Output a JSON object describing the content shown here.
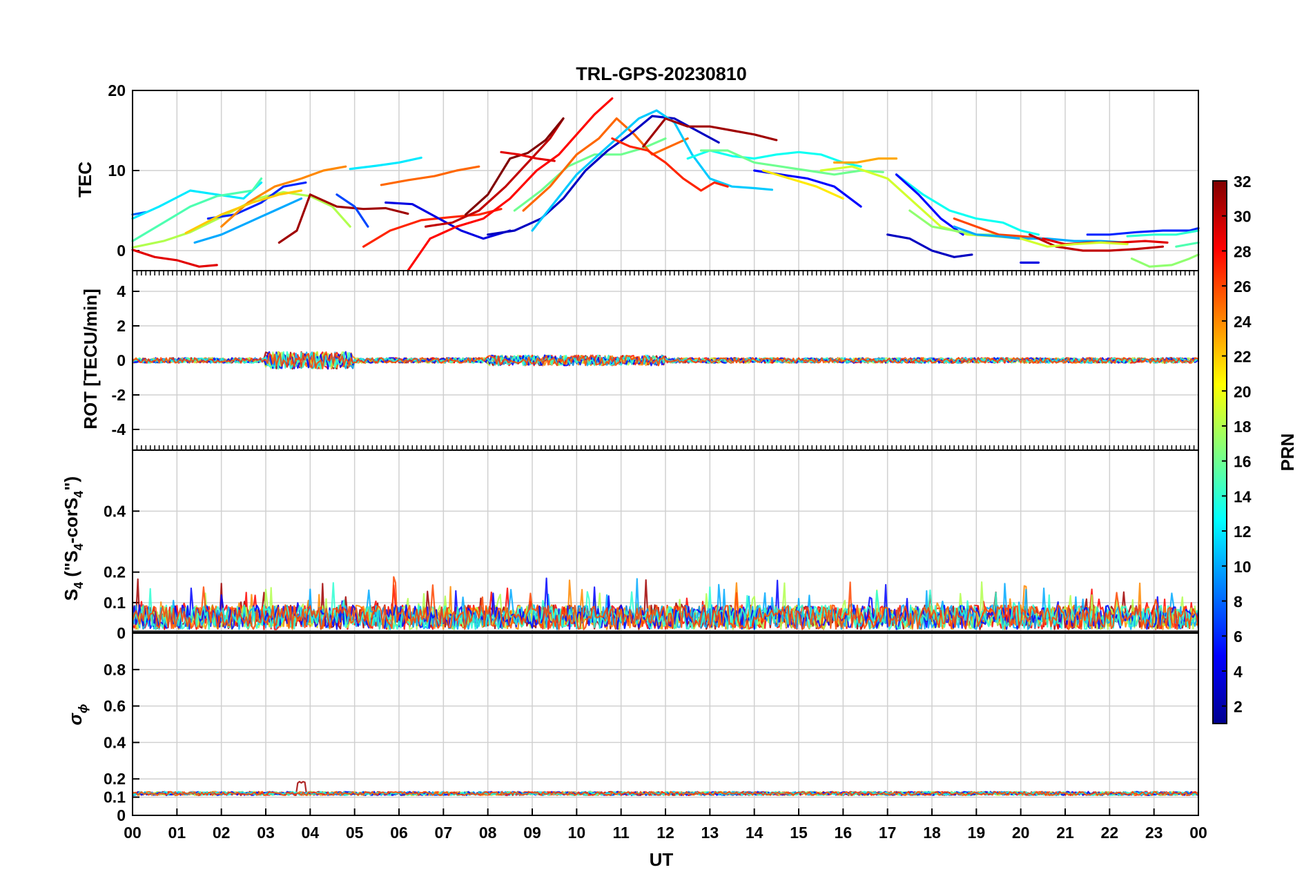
{
  "chart_data": {
    "type": "line",
    "title": "TRL-GPS-20230810",
    "xlabel": "UT",
    "x_ticks": [
      "00",
      "01",
      "02",
      "03",
      "04",
      "05",
      "06",
      "07",
      "08",
      "09",
      "10",
      "11",
      "12",
      "13",
      "14",
      "15",
      "16",
      "17",
      "18",
      "19",
      "20",
      "21",
      "22",
      "23",
      "00"
    ],
    "xlim": [
      0,
      24
    ],
    "colorbar": {
      "label": "PRN",
      "range": [
        1,
        32
      ],
      "ticks": [
        "32",
        "30",
        "28",
        "26",
        "24",
        "22",
        "20",
        "18",
        "16",
        "14",
        "12",
        "10",
        "8",
        "6",
        "4",
        "2"
      ],
      "colormap": "jet"
    },
    "panels": [
      {
        "id": "tec",
        "ylabel": "TEC",
        "ylim": [
          -2.5,
          20
        ],
        "yticks": [
          "20",
          "10",
          "0"
        ],
        "ytick_values": [
          20,
          10,
          0
        ],
        "series": [
          {
            "prn": 8,
            "x": [
              0,
              0.3
            ],
            "y": [
              4.5,
              4.8
            ]
          },
          {
            "prn": 12,
            "x": [
              0,
              0.6,
              1.3,
              1.9,
              2.5,
              2.9
            ],
            "y": [
              4,
              5.5,
              7.5,
              7,
              6.5,
              8.5
            ]
          },
          {
            "prn": 15,
            "x": [
              0,
              0.7,
              1.3,
              1.9,
              2.7,
              2.9
            ],
            "y": [
              1.2,
              3.5,
              5.5,
              6.8,
              7.5,
              9
            ]
          },
          {
            "prn": 18,
            "x": [
              0,
              0.7,
              1.3,
              2.0,
              2.8,
              3.4,
              4.0,
              4.5,
              4.9
            ],
            "y": [
              0.4,
              1.2,
              2.3,
              4.2,
              6.5,
              7.3,
              6.8,
              5.5,
              3
            ]
          },
          {
            "prn": 29,
            "x": [
              0,
              0.5,
              1.0,
              1.5,
              1.9
            ],
            "y": [
              0.1,
              -0.8,
              -1.2,
              -2,
              -1.8
            ]
          },
          {
            "prn": 10,
            "x": [
              1.4,
              2.0,
              2.6,
              3.2,
              3.8
            ],
            "y": [
              1,
              2,
              3.5,
              5,
              6.5
            ]
          },
          {
            "prn": 6,
            "x": [
              1.7,
              2.3,
              2.9,
              3.4,
              3.9
            ],
            "y": [
              4,
              4.5,
              6,
              8,
              8.5
            ]
          },
          {
            "prn": 24,
            "x": [
              2.0,
              2.6,
              3.2,
              3.8,
              4.3,
              4.8
            ],
            "y": [
              3,
              6,
              8,
              9,
              10,
              10.5
            ]
          },
          {
            "prn": 22,
            "x": [
              1.2,
              2.0,
              2.7,
              3.3,
              3.8
            ],
            "y": [
              2.2,
              4.5,
              6,
              7,
              7.5
            ]
          },
          {
            "prn": 31,
            "x": [
              3.3,
              3.7,
              4.0,
              4.6,
              5.2,
              5.7,
              6.2
            ],
            "y": [
              1,
              2.5,
              7,
              5.5,
              5.2,
              5.3,
              4.6
            ]
          },
          {
            "prn": 7,
            "x": [
              4.6,
              5.0,
              5.3
            ],
            "y": [
              7,
              5.5,
              3
            ]
          },
          {
            "prn": 12,
            "x": [
              4.9,
              5.5,
              6.0,
              6.5
            ],
            "y": [
              10.2,
              10.6,
              11,
              11.6
            ]
          },
          {
            "prn": 25,
            "x": [
              5.6,
              6.2,
              6.8,
              7.3,
              7.8
            ],
            "y": [
              8.2,
              8.8,
              9.3,
              10,
              10.5
            ]
          },
          {
            "prn": 27,
            "x": [
              5.2,
              5.8,
              6.5,
              7.2,
              7.8,
              8.3
            ],
            "y": [
              0.5,
              2.5,
              3.8,
              4.2,
              4.5,
              5.2
            ]
          },
          {
            "prn": 4,
            "x": [
              5.7,
              6.3,
              6.9,
              7.4,
              7.9,
              8.5
            ],
            "y": [
              6,
              5.8,
              4,
              2.5,
              1.5,
              2.5
            ]
          },
          {
            "prn": 28,
            "x": [
              6.2,
              6.7,
              7.3,
              7.9,
              8.5,
              9.1,
              9.6,
              10.0,
              10.4,
              10.8
            ],
            "y": [
              -2.5,
              1.5,
              3,
              4,
              6.5,
              10,
              12,
              14.5,
              17,
              19
            ]
          },
          {
            "prn": 30,
            "x": [
              6.6,
              7.2,
              7.8,
              8.4,
              8.9,
              9.4,
              9.7
            ],
            "y": [
              3,
              3.5,
              5,
              8,
              11,
              14,
              16.5
            ]
          },
          {
            "prn": 32,
            "x": [
              7.5,
              8.0,
              8.5,
              8.9,
              9.3,
              9.7
            ],
            "y": [
              4.5,
              7,
              11.5,
              12.2,
              13.8,
              16.5
            ]
          },
          {
            "prn": 29,
            "x": [
              8.3,
              8.7,
              9.1,
              9.5
            ],
            "y": [
              12.3,
              12,
              11.5,
              11.2
            ]
          },
          {
            "prn": 16,
            "x": [
              8.6,
              9.2,
              9.8,
              10.4,
              11.0,
              11.5,
              12.0
            ],
            "y": [
              5,
              7.5,
              10.5,
              12,
              12,
              12.8,
              14
            ]
          },
          {
            "prn": 25,
            "x": [
              8.8,
              9.4,
              10.0,
              10.5,
              10.9,
              11.3,
              11.7,
              12.1,
              12.5
            ],
            "y": [
              5,
              8,
              12,
              14,
              16.5,
              14.5,
              12,
              13,
              14
            ]
          },
          {
            "prn": 3,
            "x": [
              8.0,
              8.6,
              9.2,
              9.7,
              10.2,
              10.7,
              11.2,
              11.7,
              12.2,
              12.7,
              13.2
            ],
            "y": [
              2,
              2.5,
              4,
              6.5,
              10,
              12.5,
              14.5,
              16.8,
              16.5,
              15,
              13.5
            ]
          },
          {
            "prn": 11,
            "x": [
              9.0,
              9.5,
              10.0,
              10.5,
              11.0,
              11.4,
              11.8,
              12.2,
              12.6,
              13.0,
              13.5,
              14.0,
              14.4
            ],
            "y": [
              2.5,
              6,
              9.5,
              12,
              14.5,
              16.5,
              17.5,
              16,
              12,
              9,
              8,
              7.8,
              7.6
            ]
          },
          {
            "prn": 27,
            "x": [
              10.8,
              11.2,
              11.6,
              12.0,
              12.4,
              12.8,
              13.1,
              13.4
            ],
            "y": [
              14,
              13,
              12.5,
              11,
              9,
              7.5,
              8.5,
              8
            ]
          },
          {
            "prn": 31,
            "x": [
              11.5,
              12.0,
              12.5,
              13.0,
              13.5,
              14.0,
              14.5
            ],
            "y": [
              13,
              16.5,
              15.5,
              15.5,
              15,
              14.5,
              13.8
            ]
          },
          {
            "prn": 13,
            "x": [
              12.5,
              13.0,
              13.5,
              14.0,
              14.5,
              15.0,
              15.5,
              16.0,
              16.4
            ],
            "y": [
              11.5,
              12.5,
              11.8,
              11.5,
              12,
              12.3,
              12,
              11,
              10.5
            ]
          },
          {
            "prn": 16,
            "x": [
              12.8,
              13.4,
              14.0,
              14.6,
              15.2,
              15.8,
              16.4,
              16.9
            ],
            "y": [
              12.5,
              12.5,
              11,
              10.5,
              10,
              9.5,
              10,
              9.8
            ]
          },
          {
            "prn": 5,
            "x": [
              14.0,
              14.6,
              15.2,
              15.8,
              16.4
            ],
            "y": [
              10,
              9.5,
              9,
              8,
              5.5
            ]
          },
          {
            "prn": 21,
            "x": [
              14.2,
              14.8,
              15.4,
              16.0
            ],
            "y": [
              10,
              9,
              8,
              6.5
            ]
          },
          {
            "prn": 23,
            "x": [
              15.8,
              16.3,
              16.8,
              17.2
            ],
            "y": [
              11,
              11,
              11.5,
              11.5
            ]
          },
          {
            "prn": 19,
            "x": [
              15.5,
              16.2,
              17.0,
              17.6,
              18.2,
              18.8,
              19.4,
              20.0
            ],
            "y": [
              10,
              10.5,
              9,
              6,
              3,
              2,
              1.8,
              1.5
            ]
          },
          {
            "prn": 13,
            "x": [
              17.2,
              17.8,
              18.4,
              19.0,
              19.6,
              20.0,
              20.4
            ],
            "y": [
              9.5,
              7,
              5,
              4,
              3.5,
              2.5,
              2
            ]
          },
          {
            "prn": 5,
            "x": [
              17.2,
              17.7,
              18.2,
              18.7
            ],
            "y": [
              9.5,
              7,
              4,
              2
            ]
          },
          {
            "prn": 17,
            "x": [
              17.5,
              18.0,
              18.5,
              19.0,
              19.5
            ],
            "y": [
              5,
              3,
              2.5,
              2,
              2
            ]
          },
          {
            "prn": 3,
            "x": [
              17.0,
              17.5,
              18.0,
              18.5,
              18.9
            ],
            "y": [
              2,
              1.5,
              0,
              -0.8,
              -0.5
            ]
          },
          {
            "prn": 26,
            "x": [
              18.5,
              19.0,
              19.5,
              20.0,
              20.5
            ],
            "y": [
              4,
              3,
              2,
              1.8,
              1.5
            ]
          },
          {
            "prn": 10,
            "x": [
              18.5,
              19.0,
              19.5,
              20.0,
              20.6,
              21.2,
              21.8,
              22.4
            ],
            "y": [
              3,
              2,
              1.8,
              1.5,
              1.5,
              1.2,
              1.2,
              1
            ]
          },
          {
            "prn": 30,
            "x": [
              20.2,
              20.8,
              21.4,
              22.0,
              22.6,
              23.2
            ],
            "y": [
              2,
              0.5,
              0,
              0,
              0.2,
              0.5
            ]
          },
          {
            "prn": 29,
            "x": [
              20.5,
              21.0,
              21.6,
              22.2,
              22.8,
              23.3
            ],
            "y": [
              1.5,
              0.8,
              1,
              1,
              1.2,
              1
            ]
          },
          {
            "prn": 19,
            "x": [
              20.0,
              20.6,
              21.2,
              21.8,
              22.4
            ],
            "y": [
              1.5,
              0.5,
              0.8,
              1,
              0.8
            ]
          },
          {
            "prn": 6,
            "x": [
              21.5,
              22.0,
              22.6,
              23.2,
              23.8,
              24.0
            ],
            "y": [
              2,
              2,
              2.3,
              2.5,
              2.5,
              2.8
            ]
          },
          {
            "prn": 14,
            "x": [
              22.4,
              23.0,
              23.5,
              24.0
            ],
            "y": [
              1.8,
              2,
              2,
              2.5
            ]
          },
          {
            "prn": 17,
            "x": [
              22.5,
              22.9,
              23.4,
              23.8,
              24.0
            ],
            "y": [
              -1,
              -2,
              -1.8,
              -1,
              -0.5
            ]
          },
          {
            "prn": 15,
            "x": [
              23.5,
              24.0
            ],
            "y": [
              0.5,
              1
            ]
          },
          {
            "prn": 4,
            "x": [
              20.0,
              20.4
            ],
            "y": [
              -1.5,
              -1.5
            ]
          }
        ]
      },
      {
        "id": "rot",
        "ylabel": "ROT [TECU/min]",
        "ylim": [
          -5.2,
          5.2
        ],
        "yticks": [
          "4",
          "2",
          "0",
          "-2",
          "-4"
        ],
        "ytick_values": [
          4,
          2,
          0,
          -2,
          -4
        ],
        "baseline": 0,
        "typical_spread": 0.15,
        "max_excursion": [
          -1.0,
          1.0
        ]
      },
      {
        "id": "s4",
        "ylabel_main": "S",
        "ylabel_sub1": "4",
        "ylabel_mid": " (\"S",
        "ylabel_sub2": "4",
        "ylabel_mid2": "-corS",
        "ylabel_sub3": "4",
        "ylabel_end": "\")",
        "ylim": [
          0,
          0.6
        ],
        "yticks": [
          "0.4",
          "0.2",
          "0.1",
          "0"
        ],
        "ytick_values": [
          0.4,
          0.2,
          0.1,
          0
        ],
        "baseline": 0.04,
        "max_value": 0.21
      },
      {
        "id": "sigma_phi",
        "ylabel_main": "σ",
        "ylabel_sub": "ϕ",
        "ylim": [
          0,
          1
        ],
        "yticks": [
          "0.8",
          "0.6",
          "0.4",
          "0.2",
          "0.1",
          "0"
        ],
        "ytick_values": [
          0.8,
          0.6,
          0.4,
          0.2,
          0.1,
          0
        ],
        "baseline": 0.12,
        "max_value": 0.2
      }
    ]
  }
}
